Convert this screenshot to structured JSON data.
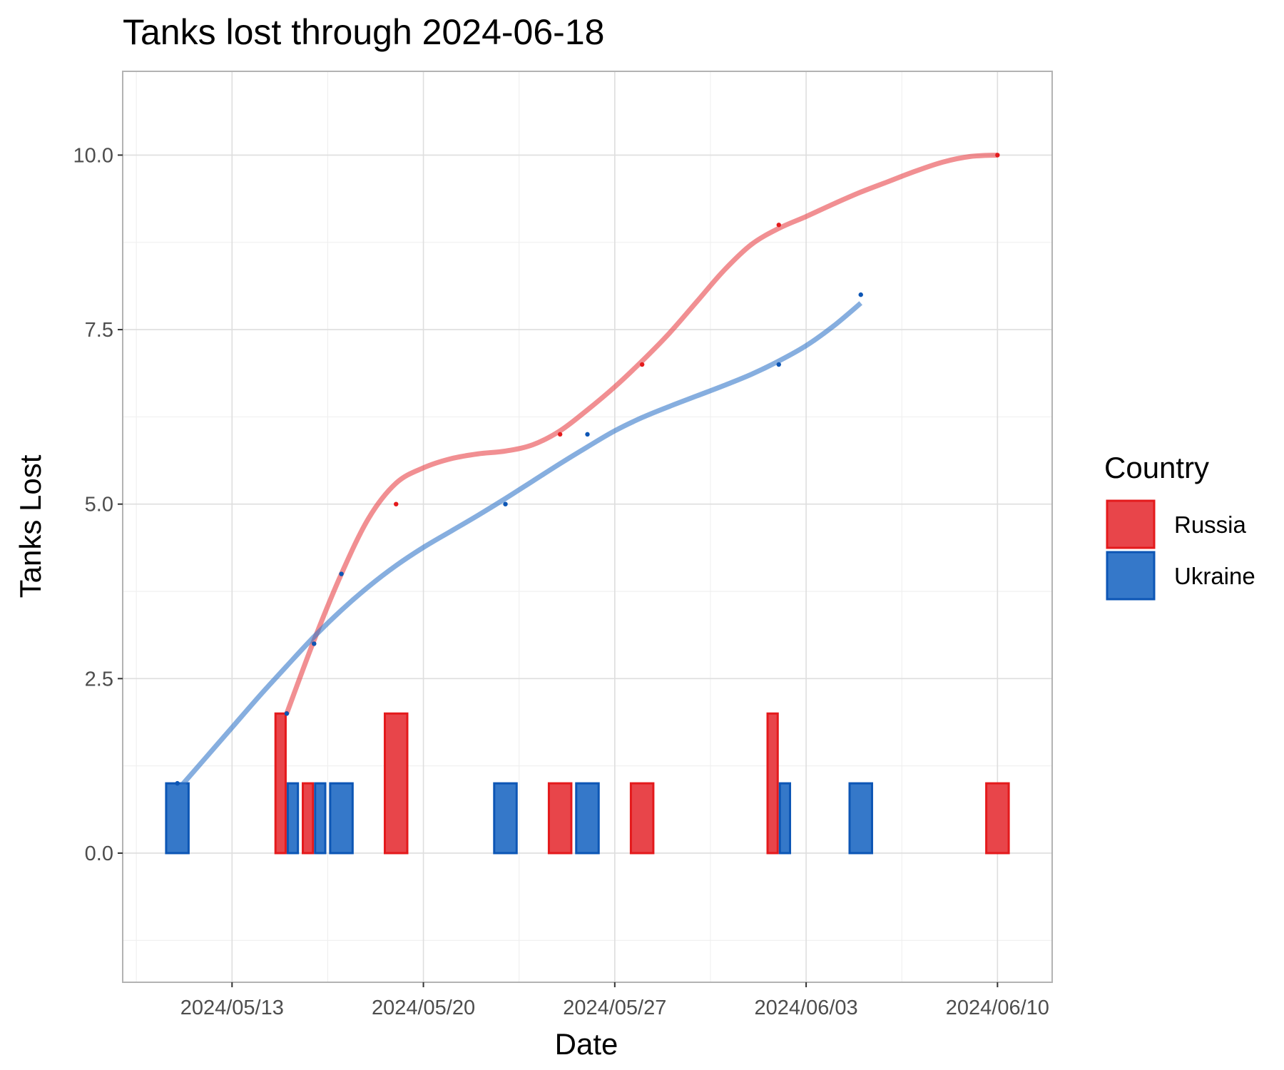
{
  "chart_data": {
    "type": "bar",
    "title": "Tanks lost through 2024-06-18",
    "xlabel": "Date",
    "ylabel": "Tanks Lost",
    "x_type": "date",
    "xlim": [
      "2024-05-09",
      "2024-06-12"
    ],
    "ylim": [
      -1.85,
      11.2
    ],
    "x_ticks": [
      "2024-05-13",
      "2024-05-20",
      "2024-05-27",
      "2024-06-03",
      "2024-06-10"
    ],
    "x_tick_labels": [
      "2024/05/13",
      "2024/05/20",
      "2024/05/27",
      "2024/06/03",
      "2024/06/10"
    ],
    "y_ticks": [
      0.0,
      2.5,
      5.0,
      7.5,
      10.0
    ],
    "y_tick_labels": [
      "0.0",
      "2.5",
      "5.0",
      "7.5",
      "10.0"
    ],
    "grid": true,
    "legend": {
      "title": "Country",
      "position": "right"
    },
    "series": [
      {
        "name": "Russia",
        "color": "#e41a1c",
        "fill": "#e8454a",
        "daily": [
          {
            "date": "2024-05-15",
            "value": 2
          },
          {
            "date": "2024-05-16",
            "value": 1
          },
          {
            "date": "2024-05-19",
            "value": 2
          },
          {
            "date": "2024-05-25",
            "value": 1
          },
          {
            "date": "2024-05-28",
            "value": 1
          },
          {
            "date": "2024-06-02",
            "value": 2
          },
          {
            "date": "2024-06-10",
            "value": 1
          }
        ],
        "cumulative": [
          {
            "date": "2024-05-15",
            "value": 2
          },
          {
            "date": "2024-05-16",
            "value": 3
          },
          {
            "date": "2024-05-19",
            "value": 5
          },
          {
            "date": "2024-05-25",
            "value": 6
          },
          {
            "date": "2024-05-28",
            "value": 7
          },
          {
            "date": "2024-06-02",
            "value": 9
          },
          {
            "date": "2024-06-10",
            "value": 10
          }
        ],
        "smooth": [
          {
            "date": "2024-05-15",
            "value": 2.0
          },
          {
            "date": "2024-05-16",
            "value": 3.05
          },
          {
            "date": "2024-05-17",
            "value": 4.0
          },
          {
            "date": "2024-05-18",
            "value": 4.8
          },
          {
            "date": "2024-05-19",
            "value": 5.3
          },
          {
            "date": "2024-05-20",
            "value": 5.52
          },
          {
            "date": "2024-05-21",
            "value": 5.65
          },
          {
            "date": "2024-05-22",
            "value": 5.72
          },
          {
            "date": "2024-05-23",
            "value": 5.76
          },
          {
            "date": "2024-05-24",
            "value": 5.85
          },
          {
            "date": "2024-05-25",
            "value": 6.05
          },
          {
            "date": "2024-05-26",
            "value": 6.35
          },
          {
            "date": "2024-05-27",
            "value": 6.68
          },
          {
            "date": "2024-05-28",
            "value": 7.05
          },
          {
            "date": "2024-05-29",
            "value": 7.45
          },
          {
            "date": "2024-05-30",
            "value": 7.9
          },
          {
            "date": "2024-05-31",
            "value": 8.35
          },
          {
            "date": "2024-06-01",
            "value": 8.72
          },
          {
            "date": "2024-06-02",
            "value": 8.95
          },
          {
            "date": "2024-06-03",
            "value": 9.12
          },
          {
            "date": "2024-06-04",
            "value": 9.3
          },
          {
            "date": "2024-06-05",
            "value": 9.47
          },
          {
            "date": "2024-06-06",
            "value": 9.62
          },
          {
            "date": "2024-06-07",
            "value": 9.77
          },
          {
            "date": "2024-06-08",
            "value": 9.9
          },
          {
            "date": "2024-06-09",
            "value": 9.98
          },
          {
            "date": "2024-06-10",
            "value": 10.0
          }
        ]
      },
      {
        "name": "Ukraine",
        "color": "#0d56b5",
        "fill": "#3578c9",
        "daily": [
          {
            "date": "2024-05-11",
            "value": 1
          },
          {
            "date": "2024-05-15",
            "value": 1
          },
          {
            "date": "2024-05-16",
            "value": 1
          },
          {
            "date": "2024-05-17",
            "value": 1
          },
          {
            "date": "2024-05-23",
            "value": 1
          },
          {
            "date": "2024-05-26",
            "value": 1
          },
          {
            "date": "2024-06-02",
            "value": 1
          },
          {
            "date": "2024-06-05",
            "value": 1
          }
        ],
        "cumulative": [
          {
            "date": "2024-05-11",
            "value": 1
          },
          {
            "date": "2024-05-15",
            "value": 2
          },
          {
            "date": "2024-05-16",
            "value": 3
          },
          {
            "date": "2024-05-17",
            "value": 4
          },
          {
            "date": "2024-05-23",
            "value": 5
          },
          {
            "date": "2024-05-26",
            "value": 6
          },
          {
            "date": "2024-06-02",
            "value": 7
          },
          {
            "date": "2024-06-05",
            "value": 8
          }
        ],
        "smooth": [
          {
            "date": "2024-05-11",
            "value": 0.9
          },
          {
            "date": "2024-05-12",
            "value": 1.35
          },
          {
            "date": "2024-05-13",
            "value": 1.8
          },
          {
            "date": "2024-05-14",
            "value": 2.25
          },
          {
            "date": "2024-05-15",
            "value": 2.68
          },
          {
            "date": "2024-05-16",
            "value": 3.1
          },
          {
            "date": "2024-05-17",
            "value": 3.48
          },
          {
            "date": "2024-05-18",
            "value": 3.82
          },
          {
            "date": "2024-05-19",
            "value": 4.12
          },
          {
            "date": "2024-05-20",
            "value": 4.38
          },
          {
            "date": "2024-05-21",
            "value": 4.61
          },
          {
            "date": "2024-05-22",
            "value": 4.84
          },
          {
            "date": "2024-05-23",
            "value": 5.08
          },
          {
            "date": "2024-05-24",
            "value": 5.33
          },
          {
            "date": "2024-05-25",
            "value": 5.58
          },
          {
            "date": "2024-05-26",
            "value": 5.82
          },
          {
            "date": "2024-05-27",
            "value": 6.05
          },
          {
            "date": "2024-05-28",
            "value": 6.24
          },
          {
            "date": "2024-05-29",
            "value": 6.4
          },
          {
            "date": "2024-05-30",
            "value": 6.55
          },
          {
            "date": "2024-05-31",
            "value": 6.7
          },
          {
            "date": "2024-06-01",
            "value": 6.86
          },
          {
            "date": "2024-06-02",
            "value": 7.05
          },
          {
            "date": "2024-06-03",
            "value": 7.27
          },
          {
            "date": "2024-06-04",
            "value": 7.55
          },
          {
            "date": "2024-06-05",
            "value": 7.88
          }
        ]
      }
    ]
  }
}
